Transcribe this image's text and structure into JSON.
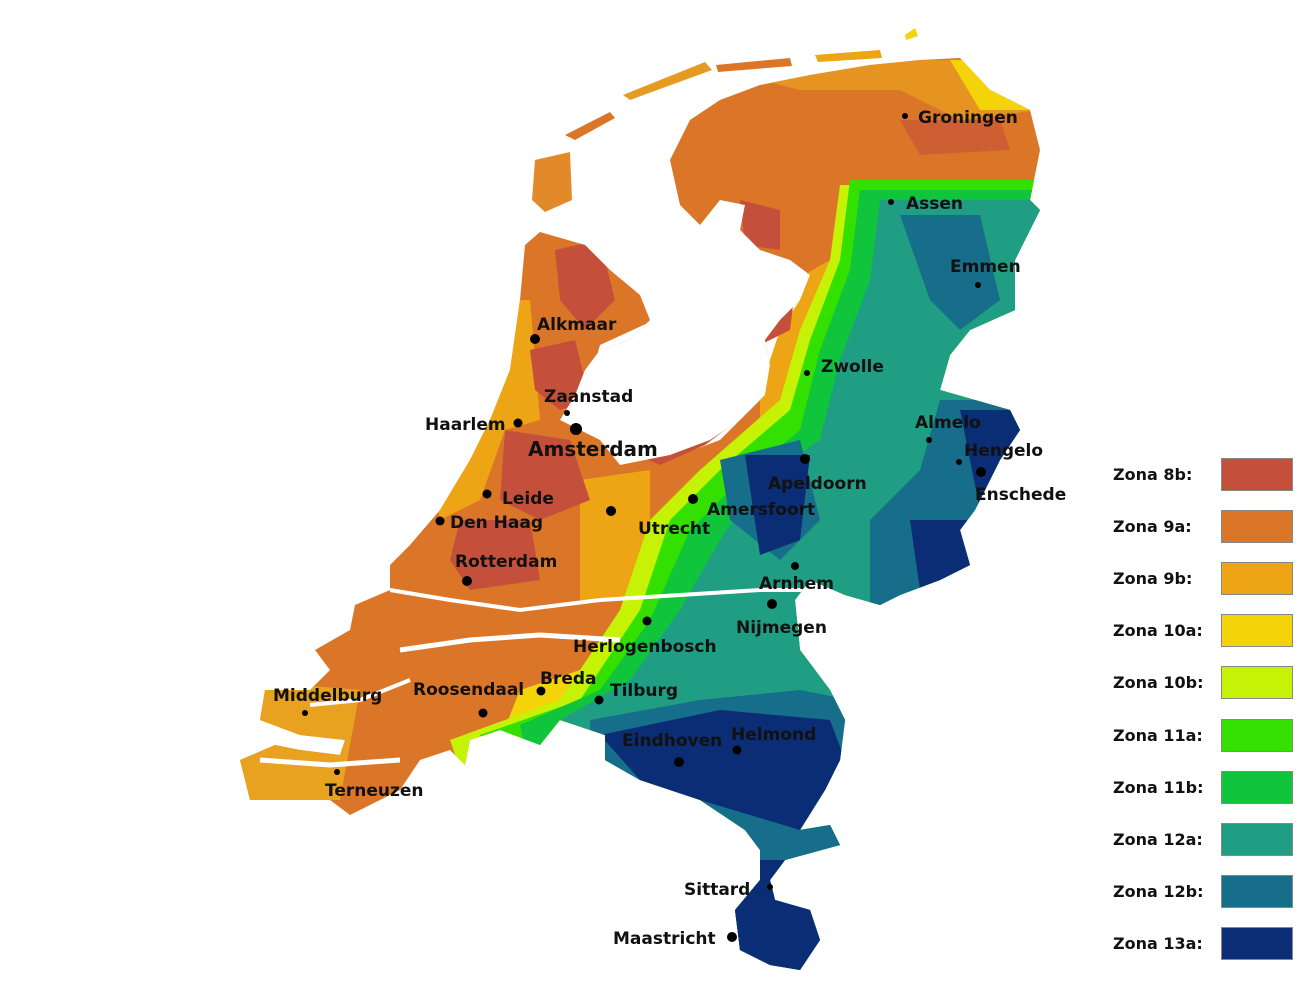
{
  "map": {
    "cities": [
      {
        "name": "Groningen"
      },
      {
        "name": "Assen"
      },
      {
        "name": "Emmen"
      },
      {
        "name": "Alkmaar"
      },
      {
        "name": "Zaanstad"
      },
      {
        "name": "Haarlem"
      },
      {
        "name": "Amsterdam"
      },
      {
        "name": "Zwolle"
      },
      {
        "name": "Almelo"
      },
      {
        "name": "Hengelo"
      },
      {
        "name": "Enschede"
      },
      {
        "name": "Apeldoorn"
      },
      {
        "name": "Amersfoort"
      },
      {
        "name": "Leide"
      },
      {
        "name": "Den Haag"
      },
      {
        "name": "Utrecht"
      },
      {
        "name": "Rotterdam"
      },
      {
        "name": "Arnhem"
      },
      {
        "name": "Nijmegen"
      },
      {
        "name": "Herlogenbosch"
      },
      {
        "name": "Breda"
      },
      {
        "name": "Roosendaal"
      },
      {
        "name": "Tilburg"
      },
      {
        "name": "Middelburg"
      },
      {
        "name": "Terneuzen"
      },
      {
        "name": "Eindhoven"
      },
      {
        "name": "Helmond"
      },
      {
        "name": "Sittard"
      },
      {
        "name": "Maastricht"
      }
    ]
  },
  "legend": [
    {
      "label": "Zona 8b:",
      "color": "#c4503b"
    },
    {
      "label": "Zona 9a:",
      "color": "#db7629"
    },
    {
      "label": "Zona 9b:",
      "color": "#eea515"
    },
    {
      "label": "Zona 10a:",
      "color": "#f4d409"
    },
    {
      "label": "Zona 10b:",
      "color": "#c6f205"
    },
    {
      "label": "Zona 11a:",
      "color": "#33e000"
    },
    {
      "label": "Zona 11b:",
      "color": "#10c43c"
    },
    {
      "label": "Zona 12a:",
      "color": "#1f9e84"
    },
    {
      "label": "Zona 12b:",
      "color": "#166e8a"
    },
    {
      "label": "Zona 13a:",
      "color": "#0b2d75"
    }
  ]
}
